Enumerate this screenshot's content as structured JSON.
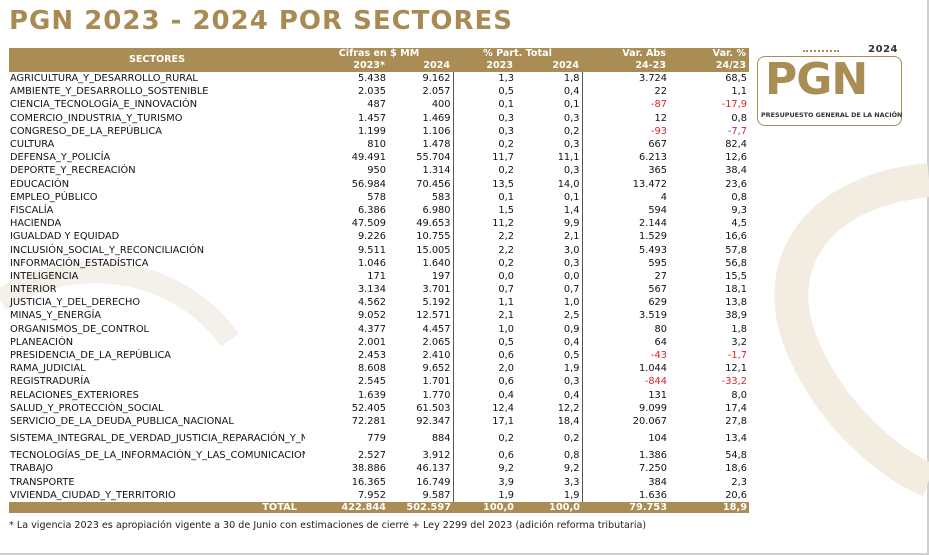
{
  "title": "PGN 2023 - 2024 POR SECTORES",
  "logo": {
    "year": "2024",
    "mark": "PGN",
    "subtitle": "PRESUPUESTO GENERAL DE LA NACIÓN"
  },
  "header": {
    "sectores": "SECTORES",
    "cifras": "Cifras en $ MM",
    "part": "% Part. Total",
    "var_abs": "Var. Abs",
    "var_pct": "Var. %",
    "y2023s": "2023*",
    "y2024": "2024",
    "y2023": "2023",
    "y2024b": "2024",
    "period_abs": "24-23",
    "period_pct": "24/23"
  },
  "rows": [
    [
      "AGRICULTURA_Y_DESARROLLO_RURAL",
      "5.438",
      "9.162",
      "1,3",
      "1,8",
      "3.724",
      "68,5"
    ],
    [
      "AMBIENTE_Y_DESARROLLO_SOSTENIBLE",
      "2.035",
      "2.057",
      "0,5",
      "0,4",
      "22",
      "1,1"
    ],
    [
      "CIENCIA_TECNOLOGÍA_E_INNOVACIÓN",
      "487",
      "400",
      "0,1",
      "0,1",
      "-87",
      "-17,9"
    ],
    [
      "COMERCIO_INDUSTRIA_Y_TURISMO",
      "1.457",
      "1.469",
      "0,3",
      "0,3",
      "12",
      "0,8"
    ],
    [
      "CONGRESO_DE_LA_REPÚBLICA",
      "1.199",
      "1.106",
      "0,3",
      "0,2",
      "-93",
      "-7,7"
    ],
    [
      "CULTURA",
      "810",
      "1.478",
      "0,2",
      "0,3",
      "667",
      "82,4"
    ],
    [
      "DEFENSA_Y_POLICÍA",
      "49.491",
      "55.704",
      "11,7",
      "11,1",
      "6.213",
      "12,6"
    ],
    [
      "DEPORTE_Y_RECREACIÓN",
      "950",
      "1.314",
      "0,2",
      "0,3",
      "365",
      "38,4"
    ],
    [
      "EDUCACIÓN",
      "56.984",
      "70.456",
      "13,5",
      "14,0",
      "13.472",
      "23,6"
    ],
    [
      "EMPLEO_PÚBLICO",
      "578",
      "583",
      "0,1",
      "0,1",
      "4",
      "0,8"
    ],
    [
      "FISCALÍA",
      "6.386",
      "6.980",
      "1,5",
      "1,4",
      "594",
      "9,3"
    ],
    [
      "HACIENDA",
      "47.509",
      "49.653",
      "11,2",
      "9,9",
      "2.144",
      "4,5"
    ],
    [
      "IGUALDAD Y EQUIDAD",
      "9.226",
      "10.755",
      "2,2",
      "2,1",
      "1.529",
      "16,6"
    ],
    [
      "INCLUSIÓN_SOCIAL_Y_RECONCILIACIÓN",
      "9.511",
      "15.005",
      "2,2",
      "3,0",
      "5.493",
      "57,8"
    ],
    [
      "INFORMACIÓN_ESTADÍSTICA",
      "1.046",
      "1.640",
      "0,2",
      "0,3",
      "595",
      "56,8"
    ],
    [
      "INTELIGENCIA",
      "171",
      "197",
      "0,0",
      "0,0",
      "27",
      "15,5"
    ],
    [
      "INTERIOR",
      "3.134",
      "3.701",
      "0,7",
      "0,7",
      "567",
      "18,1"
    ],
    [
      "JUSTICIA_Y_DEL_DERECHO",
      "4.562",
      "5.192",
      "1,1",
      "1,0",
      "629",
      "13,8"
    ],
    [
      "MINAS_Y_ENERGÍA",
      "9.052",
      "12.571",
      "2,1",
      "2,5",
      "3.519",
      "38,9"
    ],
    [
      "ORGANISMOS_DE_CONTROL",
      "4.377",
      "4.457",
      "1,0",
      "0,9",
      "80",
      "1,8"
    ],
    [
      "PLANEACIÓN",
      "2.001",
      "2.065",
      "0,5",
      "0,4",
      "64",
      "3,2"
    ],
    [
      "PRESIDENCIA_DE_LA_REPÚBLICA",
      "2.453",
      "2.410",
      "0,6",
      "0,5",
      "-43",
      "-1,7"
    ],
    [
      "RAMA_JUDICIAL",
      "8.608",
      "9.652",
      "2,0",
      "1,9",
      "1.044",
      "12,1"
    ],
    [
      "REGISTRADURÍA",
      "2.545",
      "1.701",
      "0,6",
      "0,3",
      "-844",
      "-33,2"
    ],
    [
      "RELACIONES_EXTERIORES",
      "1.639",
      "1.770",
      "0,4",
      "0,4",
      "131",
      "8,0"
    ],
    [
      "SALUD_Y_PROTECCIÓN_SOCIAL",
      "52.405",
      "61.503",
      "12,4",
      "12,2",
      "9.099",
      "17,4"
    ],
    [
      "SERVICIO_DE_LA_DEUDA_PUBLICA_NACIONAL",
      "72.281",
      "92.347",
      "17,1",
      "18,4",
      "20.067",
      "27,8"
    ],
    [
      "SISTEMA_INTEGRAL_DE_VERDAD_JUSTICIA_REPARACIÓN_Y_NO_REPETICIÓN",
      "779",
      "884",
      "0,2",
      "0,2",
      "104",
      "13,4"
    ],
    [
      "TECNOLOGÍAS_DE_LA_INFORMACIÓN_Y_LAS_COMUNICACIONES",
      "2.527",
      "3.912",
      "0,6",
      "0,8",
      "1.386",
      "54,8"
    ],
    [
      "TRABAJO",
      "38.886",
      "46.137",
      "9,2",
      "9,2",
      "7.250",
      "18,6"
    ],
    [
      "TRANSPORTE",
      "16.365",
      "16.749",
      "3,9",
      "3,3",
      "384",
      "2,3"
    ],
    [
      "VIVIENDA_CIUDAD_Y_TERRITORIO",
      "7.952",
      "9.587",
      "1,9",
      "1,9",
      "1.636",
      "20,6"
    ]
  ],
  "total": [
    "TOTAL",
    "422.844",
    "502.597",
    "100,0",
    "100,0",
    "79.753",
    "18,9"
  ],
  "footnote": "* La vigencia 2023 es apropiación vigente a 30 de Junio con estimaciones de cierre + Ley 2299 del 2023 (adición reforma tributaria)",
  "colors": {
    "gold": "#a98d55",
    "negative": "#d9262c",
    "title": "#a88a52"
  }
}
